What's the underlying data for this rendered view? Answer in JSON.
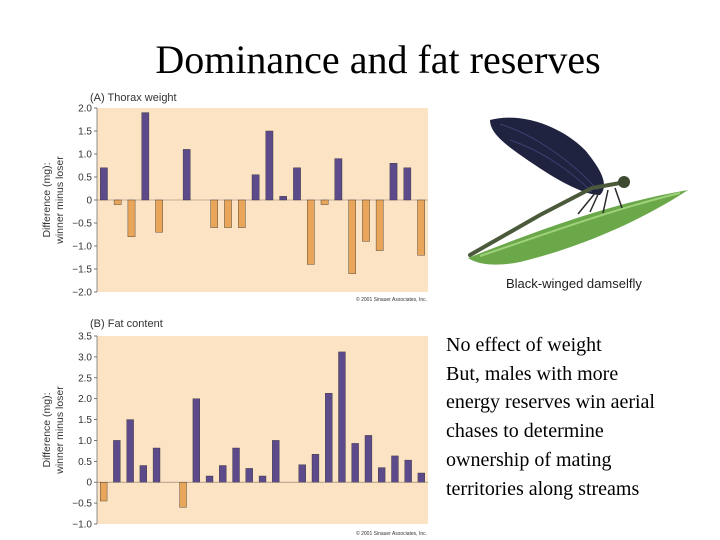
{
  "slide": {
    "title": "Dominance and fat reserves",
    "body_lines": [
      "No effect of weight",
      "But, males with more",
      "energy reserves win aerial",
      "chases to determine",
      "ownership of mating",
      "territories along streams"
    ],
    "image_caption": "Black-winged damselfly"
  },
  "colors": {
    "panel_bg": "#fbe3c4",
    "positive_bar": "#5c4a8a",
    "negative_bar": "#e9a55a"
  },
  "chart_data": [
    {
      "type": "bar",
      "title": "(A) Thorax weight",
      "ylabel": "Difference (mg):\nwinner minus loser",
      "ylim": [
        -2.0,
        2.0
      ],
      "yticks": [
        2.0,
        1.5,
        1.0,
        0.5,
        0,
        -0.5,
        -1.0,
        -1.5,
        -2.0
      ],
      "ytick_labels": [
        "2.0",
        "1.5",
        "1.0",
        "0.5",
        "0",
        "−0.5",
        "−1.0",
        "−1.5",
        "−2.0"
      ],
      "values": [
        0.7,
        -0.1,
        -0.8,
        1.9,
        -0.7,
        0,
        1.1,
        0,
        -0.6,
        -0.6,
        -0.6,
        0.55,
        1.5,
        0.08,
        0.7,
        -1.4,
        -0.1,
        0.9,
        -1.6,
        -0.9,
        -1.1,
        0.8,
        0.7,
        -1.2
      ],
      "copyright": "© 2001 Sinauer Associates, Inc."
    },
    {
      "type": "bar",
      "title": "(B) Fat content",
      "ylabel": "Difference (mg):\nwinner minus loser",
      "ylim": [
        -1.0,
        3.5
      ],
      "yticks": [
        3.5,
        3.0,
        2.5,
        2.0,
        1.5,
        1.0,
        0.5,
        0,
        -0.5,
        -1.0
      ],
      "ytick_labels": [
        "3.5",
        "3.0",
        "2.5",
        "2.0",
        "1.5",
        "1.0",
        "0.5",
        "0",
        "−0.5",
        "−1.0"
      ],
      "values": [
        -0.45,
        1.0,
        1.5,
        0.4,
        0.82,
        0,
        -0.6,
        2.0,
        0.15,
        0.4,
        0.82,
        0.33,
        0.15,
        1.0,
        0,
        0.42,
        0.67,
        2.13,
        3.12,
        0.93,
        1.12,
        0.35,
        0.63,
        0.53,
        0.22
      ],
      "copyright": "© 2001 Sinauer Associates, Inc."
    }
  ]
}
